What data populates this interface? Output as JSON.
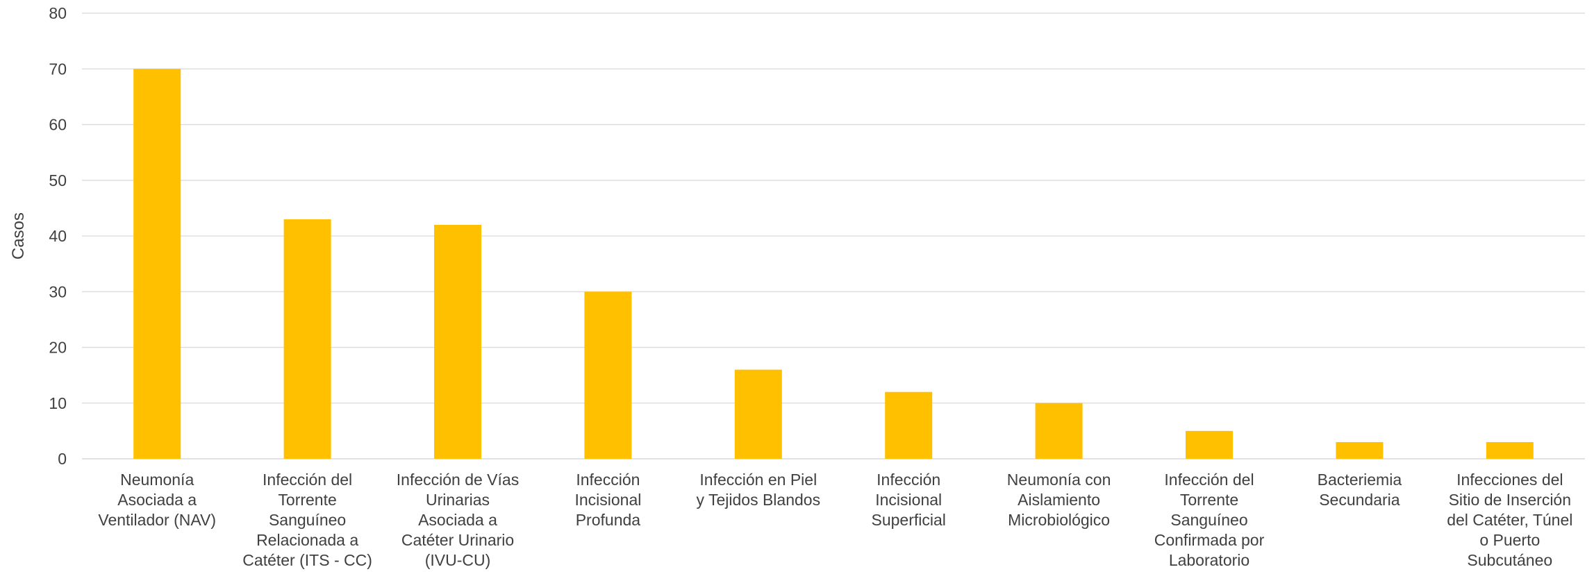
{
  "chart_data": {
    "type": "bar",
    "title": "",
    "xlabel": "",
    "ylabel": "Casos",
    "ylim": [
      0,
      80
    ],
    "yticks": [
      0,
      10,
      20,
      30,
      40,
      50,
      60,
      70,
      80
    ],
    "grid": true,
    "legend": "none",
    "bar_color": "#FFC000",
    "grid_color": "#D9D9D9",
    "categories": [
      [
        "Neumonía",
        "Asociada a",
        "Ventilador (NAV)"
      ],
      [
        "Infección del",
        "Torrente",
        "Sanguíneo",
        "Relacionada a",
        "Catéter (ITS - CC)"
      ],
      [
        "Infección de Vías",
        "Urinarias",
        "Asociada a",
        "Catéter Urinario",
        "(IVU-CU)"
      ],
      [
        "Infección",
        "Incisional",
        "Profunda"
      ],
      [
        "Infección en Piel",
        "y Tejidos Blandos"
      ],
      [
        "Infección",
        "Incisional",
        "Superficial"
      ],
      [
        "Neumonía con",
        "Aislamiento",
        "Microbiológico"
      ],
      [
        "Infección del",
        "Torrente",
        "Sanguíneo",
        "Confirmada por",
        "Laboratorio"
      ],
      [
        "Bacteriemia",
        "Secundaria"
      ],
      [
        "Infecciones del",
        "Sitio de Inserción",
        "del Catéter, Túnel",
        "o Puerto",
        "Subcutáneo"
      ]
    ],
    "values": [
      70,
      43,
      42,
      30,
      16,
      12,
      10,
      5,
      3,
      3
    ]
  }
}
